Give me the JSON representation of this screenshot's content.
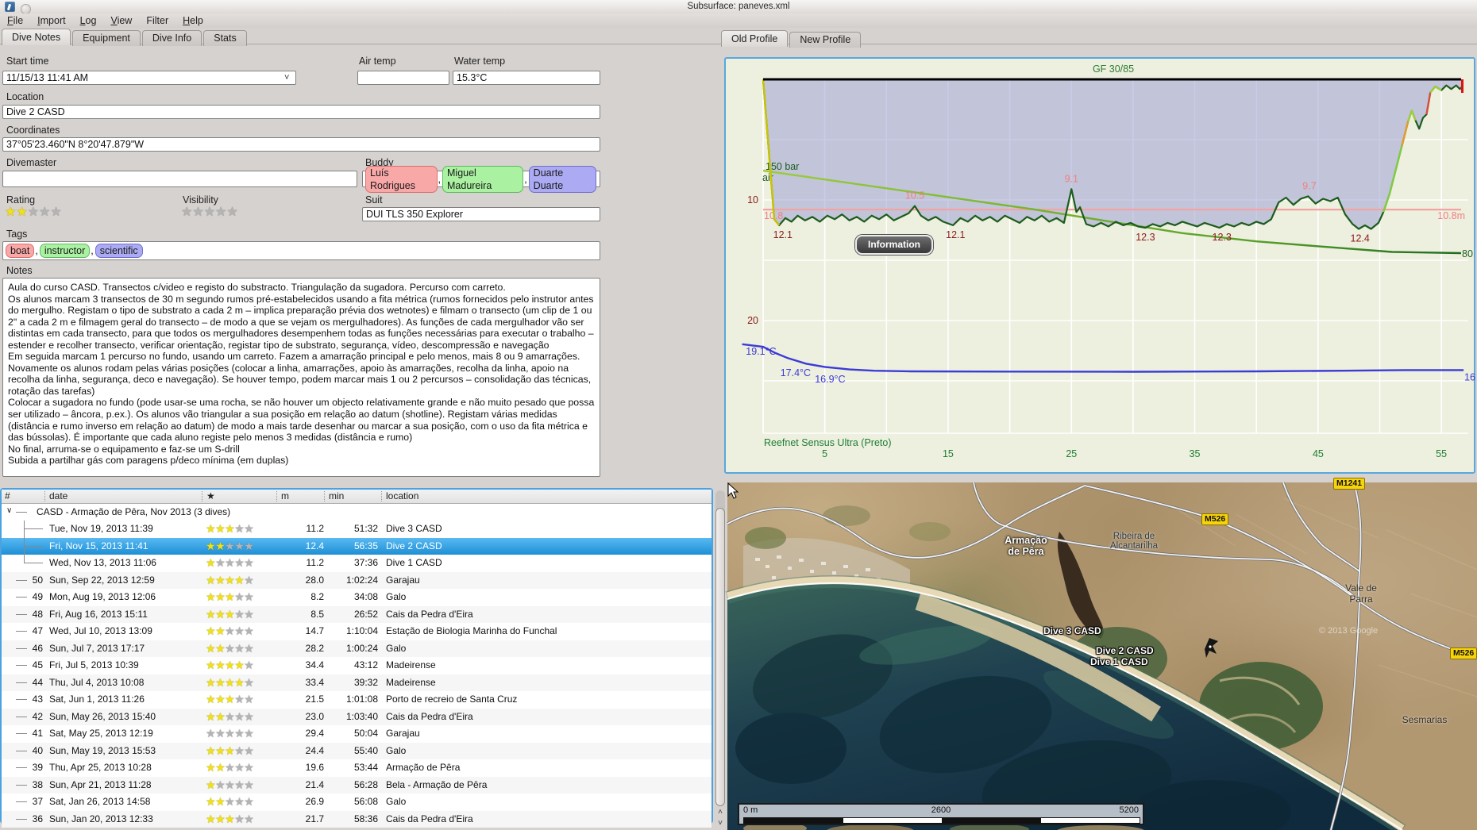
{
  "window": {
    "title": "Subsurface: paneves.xml"
  },
  "menu": [
    "File",
    "Import",
    "Log",
    "View",
    "Filter",
    "Help"
  ],
  "left_tabs": [
    {
      "label": "Dive Notes",
      "active": true
    },
    {
      "label": "Equipment",
      "active": false
    },
    {
      "label": "Dive Info",
      "active": false
    },
    {
      "label": "Stats",
      "active": false
    }
  ],
  "form": {
    "start_time_label": "Start time",
    "start_time": "11/15/13 11:41 AM",
    "air_temp_label": "Air temp",
    "air_temp": "",
    "water_temp_label": "Water temp",
    "water_temp": "15.3°C",
    "location_label": "Location",
    "location": "Dive 2 CASD",
    "coordinates_label": "Coordinates",
    "coordinates": "37°05'23.460\"N 8°20'47.879\"W",
    "divemaster_label": "Divemaster",
    "divemaster": "",
    "buddy_label": "Buddy",
    "buddies": [
      {
        "name": "Luís Rodrigues",
        "color": "red"
      },
      {
        "name": "Miguel Madureira",
        "color": "green"
      },
      {
        "name": "Duarte Duarte",
        "color": "blue"
      }
    ],
    "rating_label": "Rating",
    "rating": 2,
    "visibility_label": "Visibility",
    "visibility": 0,
    "suit_label": "Suit",
    "suit": "DUI TLS 350 Explorer",
    "tags_label": "Tags",
    "tags": [
      {
        "name": "boat",
        "color": "red"
      },
      {
        "name": "instructor",
        "color": "green"
      },
      {
        "name": "scientific",
        "color": "blue"
      }
    ],
    "notes_label": "Notes",
    "notes": "Aula do curso CASD. Transectos c/video e registo do substracto. Triangulação da sugadora. Percurso com carreto.\nOs alunos marcam 3 transectos de 30 m segundo rumos pré-estabelecidos usando a fita métrica (rumos fornecidos pelo instrutor antes do mergulho. Registam o tipo de substrato a cada 2 m – implica preparação prévia dos wetnotes) e filmam o transecto (um clip de 1 ou 2\" a cada 2 m e filmagem geral do transecto – de modo a que se vejam os mergulhadores). As funções de cada mergulhador vão ser distintas em cada transecto, para que todos os mergulhadores desempenhem todas as funções necessárias para executar o trabalho – estender e recolher transecto, verificar orientação, registar tipo de substrato, segurança, vídeo, descompressão e navegação\nEm seguida marcam 1 percurso no fundo, usando um carreto. Fazem a amarração principal e pelo menos, mais 8 ou 9 amarrações.\nNovamente os alunos rodam pelas várias posições (colocar a linha, amarrações, apoio às amarrações, recolha da linha, apoio na recolha da linha, segurança, deco e navegação). Se houver tempo, podem marcar mais 1 ou 2 percursos – consolidação das técnicas, rotação das tarefas)\nColocar a sugadora no fundo (pode usar-se uma rocha, se não houver um objecto relativamente grande e não muito pesado que possa ser utilizado – âncora, p.ex.). Os alunos vão triangular a sua posição em relação ao datum (shotline). Registam várias medidas (distância e rumo inverso em relação ao datum) de modo a mais tarde desenhar ou marcar a sua posição, com o uso da fita métrica e das bússolas). É importante que cada aluno registe pelo menos 3 medidas (distância e rumo)\nNo final, arruma-se o equipamento e faz-se um S-drill\nSubida a partilhar gás com paragens p/deco mínima (em duplas)"
  },
  "dive_list": {
    "columns": [
      "#",
      "date",
      "★",
      "m",
      "min",
      "location"
    ],
    "group": "CASD - Armação de Pêra, Nov 2013 (3 dives)",
    "rows": [
      {
        "num": "",
        "date": "Tue, Nov 19, 2013 11:39",
        "stars": 3,
        "depth": "11.2",
        "duration": "51:32",
        "location": "Dive 3 CASD",
        "tree": "mid"
      },
      {
        "num": "",
        "date": "Fri, Nov 15, 2013 11:41",
        "stars": 2,
        "depth": "12.4",
        "duration": "56:35",
        "location": "Dive 2 CASD",
        "tree": "mid",
        "selected": true
      },
      {
        "num": "",
        "date": "Wed, Nov 13, 2013 11:06",
        "stars": 1,
        "depth": "11.2",
        "duration": "37:36",
        "location": "Dive 1 CASD",
        "tree": "last"
      },
      {
        "num": "50",
        "date": "Sun, Sep 22, 2013 12:59",
        "stars": 4,
        "depth": "28.0",
        "duration": "1:02:24",
        "location": "Garajau"
      },
      {
        "num": "49",
        "date": "Mon, Aug 19, 2013 12:06",
        "stars": 3,
        "depth": "8.2",
        "duration": "34:08",
        "location": "Galo"
      },
      {
        "num": "48",
        "date": "Fri, Aug 16, 2013 15:11",
        "stars": 3,
        "depth": "8.5",
        "duration": "26:52",
        "location": "Cais da Pedra d'Eira"
      },
      {
        "num": "47",
        "date": "Wed, Jul 10, 2013 13:09",
        "stars": 2,
        "depth": "14.7",
        "duration": "1:10:04",
        "location": "Estação de Biologia Marinha do Funchal"
      },
      {
        "num": "46",
        "date": "Sun, Jul 7, 2013 17:17",
        "stars": 2,
        "depth": "28.2",
        "duration": "1:00:24",
        "location": "Galo"
      },
      {
        "num": "45",
        "date": "Fri, Jul 5, 2013 10:39",
        "stars": 4,
        "depth": "34.4",
        "duration": "43:12",
        "location": "Madeirense"
      },
      {
        "num": "44",
        "date": "Thu, Jul 4, 2013 10:08",
        "stars": 4,
        "depth": "33.4",
        "duration": "39:32",
        "location": "Madeirense"
      },
      {
        "num": "43",
        "date": "Sat, Jun 1, 2013 11:26",
        "stars": 3,
        "depth": "21.5",
        "duration": "1:01:08",
        "location": "Porto de recreio de Santa Cruz"
      },
      {
        "num": "42",
        "date": "Sun, May 26, 2013 15:40",
        "stars": 2,
        "depth": "23.0",
        "duration": "1:03:40",
        "location": "Cais da Pedra d'Eira"
      },
      {
        "num": "41",
        "date": "Sat, May 25, 2013 12:19",
        "stars": 0,
        "depth": "29.4",
        "duration": "50:04",
        "location": "Garajau"
      },
      {
        "num": "40",
        "date": "Sun, May 19, 2013 15:53",
        "stars": 3,
        "depth": "24.4",
        "duration": "55:40",
        "location": "Galo"
      },
      {
        "num": "39",
        "date": "Thu, Apr 25, 2013 10:28",
        "stars": 2,
        "depth": "19.6",
        "duration": "53:44",
        "location": "Armação de Pêra"
      },
      {
        "num": "38",
        "date": "Sun, Apr 21, 2013 11:28",
        "stars": 1,
        "depth": "21.4",
        "duration": "56:28",
        "location": "Bela - Armação de Pêra"
      },
      {
        "num": "37",
        "date": "Sat, Jan 26, 2013 14:58",
        "stars": 2,
        "depth": "26.9",
        "duration": "56:08",
        "location": "Galo"
      },
      {
        "num": "36",
        "date": "Sun, Jan 20, 2013 12:33",
        "stars": 3,
        "depth": "21.7",
        "duration": "58:36",
        "location": "Cais da Pedra d'Eira"
      }
    ]
  },
  "profile_tabs": [
    {
      "label": "Old Profile",
      "active": true
    },
    {
      "label": "New Profile",
      "active": false
    }
  ],
  "info_button_label": "Information",
  "chart_data": {
    "type": "line",
    "title": "GF 30/85",
    "device_label": "Reefnet Sensus Ultra (Preto)",
    "x_unit": "min",
    "y_unit": "m",
    "x_ticks": [
      5,
      15,
      25,
      35,
      45,
      55
    ],
    "y_ticks": [
      10,
      20
    ],
    "x_range": [
      0,
      57
    ],
    "y_range_depth": [
      0,
      29
    ],
    "mean_depth": {
      "value_m": 10.8,
      "label_right": "10.8m",
      "label_left": "10.8"
    },
    "pressure": {
      "start_label": "150 bar",
      "gas_label": "air",
      "end_label": "80",
      "points": [
        [
          0,
          150
        ],
        [
          4,
          144
        ],
        [
          10,
          135
        ],
        [
          16,
          126
        ],
        [
          22,
          117
        ],
        [
          28,
          107
        ],
        [
          34,
          97
        ],
        [
          40,
          90
        ],
        [
          46,
          85
        ],
        [
          51,
          81
        ],
        [
          54,
          80.5
        ],
        [
          56.6,
          80
        ]
      ]
    },
    "temperature": {
      "points": [
        [
          -1.7,
          19.05
        ],
        [
          0,
          18.85
        ],
        [
          1,
          18.35
        ],
        [
          2,
          17.95
        ],
        [
          3.5,
          17.5
        ],
        [
          5,
          17.25
        ],
        [
          7,
          17.05
        ],
        [
          9,
          16.95
        ],
        [
          12,
          16.9
        ],
        [
          20,
          16.88
        ],
        [
          30,
          16.87
        ],
        [
          40,
          16.9
        ],
        [
          47,
          16.95
        ],
        [
          52,
          17.0
        ],
        [
          56.8,
          17.0
        ]
      ],
      "labels": [
        {
          "min": -1.4,
          "t": 19.1,
          "text": "19.1°C"
        },
        {
          "min": 1.4,
          "t": 17.4,
          "text": "17.4°C"
        },
        {
          "min": 4.2,
          "t": 16.9,
          "text": "16.9°C"
        }
      ],
      "end_text": "16"
    },
    "depth_annotations": [
      {
        "min": 1.6,
        "depth": 12.1,
        "text": "12.1",
        "kind": "max"
      },
      {
        "min": 12.3,
        "depth": 10.5,
        "text": "10.5",
        "kind": "min"
      },
      {
        "min": 15.6,
        "depth": 12.1,
        "text": "12.1",
        "kind": "max"
      },
      {
        "min": 25.0,
        "depth": 9.1,
        "text": "9.1",
        "kind": "min"
      },
      {
        "min": 31.0,
        "depth": 12.3,
        "text": "12.3",
        "kind": "max"
      },
      {
        "min": 37.2,
        "depth": 12.3,
        "text": "12.3",
        "kind": "max"
      },
      {
        "min": 44.3,
        "depth": 9.7,
        "text": "9.7",
        "kind": "min"
      },
      {
        "min": 48.4,
        "depth": 12.4,
        "text": "12.4",
        "kind": "max"
      }
    ],
    "profile_points": [
      [
        0,
        0
      ],
      [
        0.9,
        11.6
      ],
      [
        1.3,
        12.1
      ],
      [
        1.8,
        11.5
      ],
      [
        2.3,
        11.8
      ],
      [
        2.8,
        11.3
      ],
      [
        3.4,
        11.7
      ],
      [
        4,
        11.4
      ],
      [
        4.6,
        11.8
      ],
      [
        5.2,
        11.3
      ],
      [
        5.8,
        11.6
      ],
      [
        6.4,
        11.2
      ],
      [
        7,
        11.7
      ],
      [
        7.6,
        11.4
      ],
      [
        8.2,
        11.8
      ],
      [
        8.8,
        11.3
      ],
      [
        9.4,
        11.6
      ],
      [
        10,
        11.2
      ],
      [
        10.6,
        11.7
      ],
      [
        11.2,
        11.4
      ],
      [
        11.8,
        11.1
      ],
      [
        12.3,
        10.5
      ],
      [
        12.8,
        11.3
      ],
      [
        13.4,
        11.7
      ],
      [
        14,
        11.4
      ],
      [
        14.6,
        11.8
      ],
      [
        15.4,
        12.1
      ],
      [
        16,
        11.5
      ],
      [
        16.6,
        11.8
      ],
      [
        17.2,
        11.3
      ],
      [
        17.8,
        11.7
      ],
      [
        18.4,
        11.4
      ],
      [
        19,
        11.8
      ],
      [
        19.6,
        11.3
      ],
      [
        20.2,
        11.6
      ],
      [
        20.8,
        11.9
      ],
      [
        21.4,
        11.4
      ],
      [
        22,
        11.7
      ],
      [
        22.6,
        11.3
      ],
      [
        23.2,
        11.8
      ],
      [
        23.8,
        11.5
      ],
      [
        24.4,
        11.9
      ],
      [
        25,
        9.1
      ],
      [
        25.4,
        11.0
      ],
      [
        25.7,
        10.6
      ],
      [
        26.2,
        12.0
      ],
      [
        26.8,
        12.2
      ],
      [
        27.4,
        11.9
      ],
      [
        28,
        12.2
      ],
      [
        28.6,
        11.8
      ],
      [
        29.2,
        12.1
      ],
      [
        29.8,
        11.9
      ],
      [
        30.4,
        12.2
      ],
      [
        31,
        12.3
      ],
      [
        31.6,
        12.0
      ],
      [
        32.2,
        12.2
      ],
      [
        32.8,
        11.9
      ],
      [
        33.4,
        12.1
      ],
      [
        34,
        11.8
      ],
      [
        34.6,
        12.0
      ],
      [
        35.2,
        12.2
      ],
      [
        35.8,
        11.9
      ],
      [
        36.4,
        12.1
      ],
      [
        37,
        12.3
      ],
      [
        37.6,
        12.0
      ],
      [
        38.2,
        12.2
      ],
      [
        38.8,
        11.9
      ],
      [
        39.4,
        12.1
      ],
      [
        40,
        11.8
      ],
      [
        40.6,
        12.0
      ],
      [
        41.2,
        11.6
      ],
      [
        41.8,
        10.2
      ],
      [
        42.4,
        9.8
      ],
      [
        43,
        10.4
      ],
      [
        43.6,
        9.9
      ],
      [
        44.2,
        9.7
      ],
      [
        44.8,
        10.3
      ],
      [
        45.4,
        9.9
      ],
      [
        46,
        10.1
      ],
      [
        46.6,
        9.8
      ],
      [
        47.2,
        11.2
      ],
      [
        47.8,
        12.0
      ],
      [
        48.3,
        12.4
      ],
      [
        48.8,
        12.1
      ],
      [
        49.3,
        12.4
      ],
      [
        49.9,
        11.9
      ],
      [
        50.3,
        11.0
      ],
      [
        50.8,
        9.5
      ],
      [
        51.3,
        7.5
      ],
      [
        51.8,
        5.5
      ],
      [
        52.3,
        3.5
      ],
      [
        52.6,
        2.6
      ],
      [
        52.9,
        3.4
      ],
      [
        53.2,
        4.1
      ],
      [
        53.5,
        3.2
      ],
      [
        53.8,
        2.9
      ],
      [
        54.1,
        1.1
      ],
      [
        54.5,
        0.6
      ],
      [
        55,
        0.9
      ],
      [
        55.4,
        0.5
      ],
      [
        55.8,
        0.8
      ],
      [
        56.2,
        0.5
      ],
      [
        56.5,
        0.8
      ],
      [
        56.7,
        0.6
      ]
    ],
    "colored_segments": [
      {
        "color": "#c9c400",
        "points": [
          [
            0,
            0
          ],
          [
            0.9,
            11.6
          ],
          [
            1.3,
            12.1
          ]
        ]
      },
      {
        "color": "#82cc44",
        "points": [
          [
            50.3,
            11.0
          ],
          [
            50.8,
            9.5
          ],
          [
            51.3,
            7.5
          ],
          [
            51.8,
            5.5
          ]
        ]
      },
      {
        "color": "#e39c2a",
        "points": [
          [
            51.8,
            5.5
          ],
          [
            52.3,
            3.5
          ]
        ]
      },
      {
        "color": "#9ccf3a",
        "points": [
          [
            52.3,
            3.5
          ],
          [
            52.6,
            2.6
          ],
          [
            52.9,
            3.4
          ]
        ]
      },
      {
        "color": "#d94f3a",
        "points": [
          [
            53.8,
            2.9
          ],
          [
            54.1,
            1.1
          ]
        ]
      },
      {
        "color": "#9ccf3a",
        "points": [
          [
            54.1,
            1.1
          ],
          [
            54.5,
            0.6
          ],
          [
            55,
            0.9
          ]
        ]
      }
    ],
    "colors": {
      "profile": "#1c5c1c",
      "pressure_start": "#9ccd3c",
      "pressure_end": "#1d6b1d",
      "temperature": "#3b3bd6",
      "mean_line": "#f4a3a3",
      "axis_depth": "#8b1a1a",
      "axis_time": "#1e7e34",
      "title": "#2e7d32",
      "min_label": "#f08080",
      "max_label": "#8b1a1a"
    }
  },
  "map": {
    "place_labels": {
      "armacao": "Armação\nde Pêra",
      "ribeira": "Ribeira de\nAlcantarilha",
      "vale": "Vale de\nParra",
      "sesmarias": "Sesmarias"
    },
    "road_badges": {
      "m526_top": "M526",
      "m1241": "M1241",
      "m526_right": "M526"
    },
    "dive_markers": [
      "Dive 3 CASD",
      "Dive 2 CASD",
      "Dive 1 CASD"
    ],
    "watermark": "© 2013 Google",
    "scale": {
      "left": "0 m",
      "mid": "2600",
      "right": "5200"
    }
  }
}
